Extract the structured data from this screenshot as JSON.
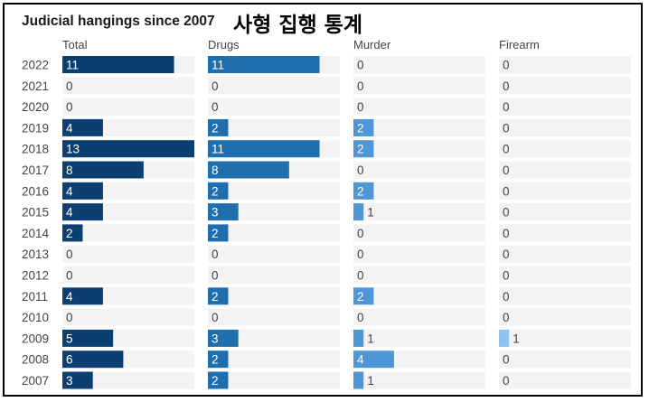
{
  "title": "Judicial hangings since 2007",
  "title_korean": "사형 집행 통계",
  "chart_data": {
    "type": "bar",
    "orientation": "horizontal",
    "layout": "small-multiples",
    "categories": [
      "2022",
      "2021",
      "2020",
      "2019",
      "2018",
      "2017",
      "2016",
      "2015",
      "2014",
      "2013",
      "2012",
      "2011",
      "2010",
      "2009",
      "2008",
      "2007"
    ],
    "series": [
      {
        "name": "Total",
        "color": "#0b3f72",
        "values": [
          11,
          0,
          0,
          4,
          13,
          8,
          4,
          4,
          2,
          0,
          0,
          4,
          0,
          5,
          6,
          3
        ]
      },
      {
        "name": "Drugs",
        "color": "#1f6fae",
        "values": [
          11,
          0,
          0,
          2,
          11,
          8,
          2,
          3,
          2,
          0,
          0,
          2,
          0,
          3,
          2,
          2
        ]
      },
      {
        "name": "Murder",
        "color": "#4f96d6",
        "values": [
          0,
          0,
          0,
          2,
          2,
          0,
          2,
          1,
          0,
          0,
          0,
          2,
          0,
          1,
          4,
          1
        ]
      },
      {
        "name": "Firearm",
        "color": "#8fc4f0",
        "values": [
          0,
          0,
          0,
          0,
          0,
          0,
          0,
          0,
          0,
          0,
          0,
          0,
          0,
          1,
          0,
          0
        ]
      }
    ],
    "xlim": [
      0,
      13
    ],
    "track_color": "#f3f3f3",
    "grid": false,
    "value_labels": true
  }
}
